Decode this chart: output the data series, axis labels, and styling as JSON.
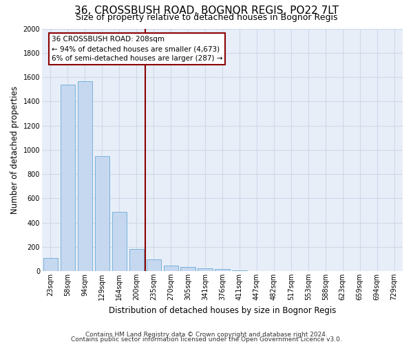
{
  "title": "36, CROSSBUSH ROAD, BOGNOR REGIS, PO22 7LT",
  "subtitle": "Size of property relative to detached houses in Bognor Regis",
  "xlabel": "Distribution of detached houses by size in Bognor Regis",
  "ylabel": "Number of detached properties",
  "categories": [
    "23sqm",
    "58sqm",
    "94sqm",
    "129sqm",
    "164sqm",
    "200sqm",
    "235sqm",
    "270sqm",
    "305sqm",
    "341sqm",
    "376sqm",
    "411sqm",
    "447sqm",
    "482sqm",
    "517sqm",
    "553sqm",
    "588sqm",
    "623sqm",
    "659sqm",
    "694sqm",
    "729sqm"
  ],
  "values": [
    107,
    1535,
    1565,
    950,
    490,
    183,
    95,
    47,
    33,
    22,
    15,
    8,
    0,
    0,
    0,
    0,
    0,
    0,
    0,
    0,
    0
  ],
  "bar_color": "#c5d8f0",
  "bar_edgecolor": "#6aaad4",
  "vline_color": "#8B0000",
  "annotation_line1": "36 CROSSBUSH ROAD: 208sqm",
  "annotation_line2": "← 94% of detached houses are smaller (4,673)",
  "annotation_line3": "6% of semi-detached houses are larger (287) →",
  "annotation_box_color": "#8B0000",
  "ylim": [
    0,
    2000
  ],
  "yticks": [
    0,
    200,
    400,
    600,
    800,
    1000,
    1200,
    1400,
    1600,
    1800,
    2000
  ],
  "footer1": "Contains HM Land Registry data © Crown copyright and database right 2024.",
  "footer2": "Contains public sector information licensed under the Open Government Licence v3.0.",
  "background_color": "#e8eef8",
  "grid_color": "#d0d8e8",
  "title_fontsize": 11,
  "subtitle_fontsize": 9,
  "label_fontsize": 8.5,
  "tick_fontsize": 7,
  "footer_fontsize": 6.5,
  "annotation_fontsize": 7.5
}
